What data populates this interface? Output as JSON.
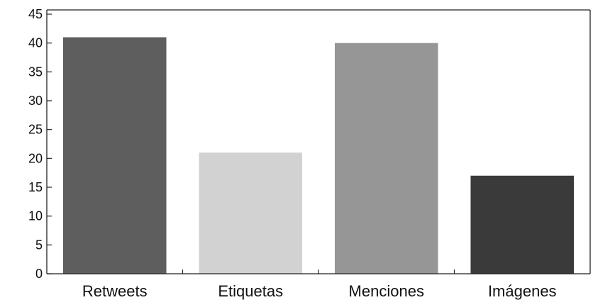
{
  "chart_data": {
    "type": "bar",
    "title": "",
    "xlabel": "",
    "ylabel": "",
    "categories": [
      "Retweets",
      "Etiquetas",
      "Menciones",
      "Imágenes"
    ],
    "values": [
      41,
      21,
      40,
      17
    ],
    "ylim": [
      0,
      45
    ],
    "yticks": [
      "0",
      "5",
      "10",
      "15",
      "20",
      "25",
      "30",
      "35",
      "40",
      "45"
    ],
    "grid": false,
    "legend": "none",
    "bar_colors": [
      "#5e5e5e",
      "#d2d2d2",
      "#969696",
      "#3a3a3a"
    ]
  }
}
